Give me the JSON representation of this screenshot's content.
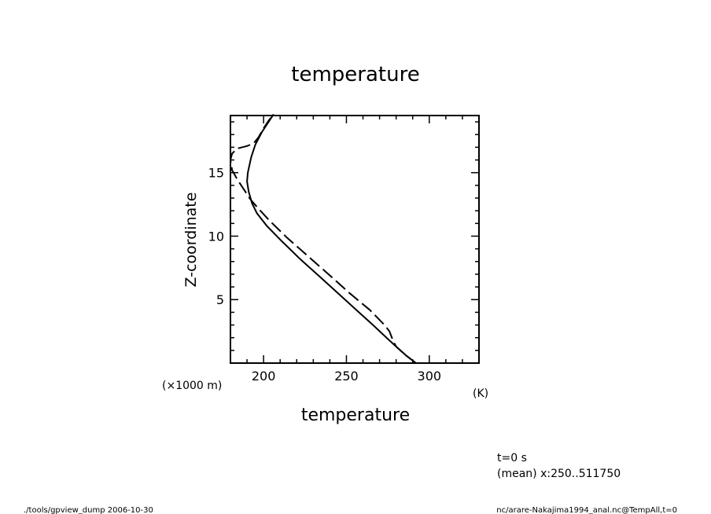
{
  "chart_data": {
    "type": "line",
    "title": "temperature",
    "xlabel": "temperature",
    "ylabel": "Z-coordinate",
    "x_unit": "(K)",
    "y_unit": "(×1000 m)",
    "xlim": [
      180,
      330
    ],
    "ylim": [
      0,
      19.5
    ],
    "x_ticks": [
      200,
      250,
      300
    ],
    "y_ticks": [
      5,
      10,
      15
    ],
    "grid": false,
    "series": [
      {
        "style": "solid",
        "points": [
          [
            292,
            0
          ],
          [
            286,
            0.6
          ],
          [
            280,
            1.3
          ],
          [
            275,
            1.9
          ],
          [
            266,
            3
          ],
          [
            255,
            4.3
          ],
          [
            245,
            5.5
          ],
          [
            234,
            6.8
          ],
          [
            222,
            8.2
          ],
          [
            211,
            9.6
          ],
          [
            202,
            10.8
          ],
          [
            196,
            11.8
          ],
          [
            193,
            12.6
          ],
          [
            191,
            13.5
          ],
          [
            190,
            14.3
          ],
          [
            190.5,
            15
          ],
          [
            192.5,
            16.2
          ],
          [
            195,
            17.2
          ],
          [
            199,
            18.2
          ],
          [
            203,
            19
          ],
          [
            206,
            19.6
          ]
        ]
      },
      {
        "style": "dashed",
        "points": [
          [
            292,
            0
          ],
          [
            286,
            0.6
          ],
          [
            280,
            1.3
          ],
          [
            278,
            1.8
          ],
          [
            276,
            2.5
          ],
          [
            273,
            3
          ],
          [
            264,
            4.2
          ],
          [
            252,
            5.5
          ],
          [
            240,
            6.9
          ],
          [
            227,
            8.4
          ],
          [
            214,
            9.9
          ],
          [
            203,
            11.3
          ],
          [
            196,
            12.3
          ],
          [
            192,
            12.9
          ],
          [
            189,
            13.5
          ],
          [
            184,
            14.5
          ],
          [
            181,
            15.2
          ],
          [
            180,
            16
          ],
          [
            181,
            16.5
          ],
          [
            184,
            16.9
          ],
          [
            190,
            17.1
          ],
          [
            194,
            17.3
          ],
          [
            197,
            17.8
          ],
          [
            200,
            18.5
          ],
          [
            203,
            19.1
          ],
          [
            206,
            19.6
          ]
        ]
      }
    ]
  },
  "annotations": {
    "time": "t=0 s",
    "mean": "(mean) x:250..511750",
    "footer_left": "./tools/gpview_dump  2006-10-30",
    "footer_right": "nc/arare-Nakajima1994_anal.nc@TempAll,t=0"
  }
}
